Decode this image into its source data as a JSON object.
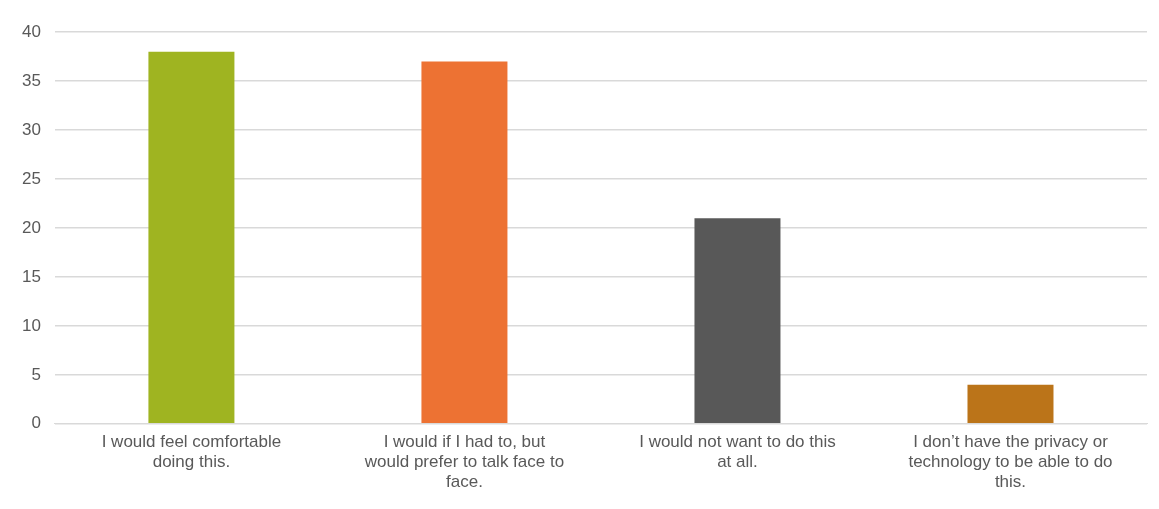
{
  "chart_data": {
    "type": "bar",
    "categories": [
      "I would feel comfortable doing this.",
      "I would if I had to, but would prefer to talk face to face.",
      "I would not want to do this at all.",
      "I don’t have the privacy or technology to be able to do this."
    ],
    "values": [
      38,
      37,
      21,
      4
    ],
    "colors": [
      "#9fb421",
      "#ed7233",
      "#585858",
      "#bb7419"
    ],
    "ylim": [
      0,
      40
    ],
    "yticks": [
      0,
      5,
      10,
      15,
      20,
      25,
      30,
      35,
      40
    ],
    "grid": "y",
    "legend": false
  }
}
